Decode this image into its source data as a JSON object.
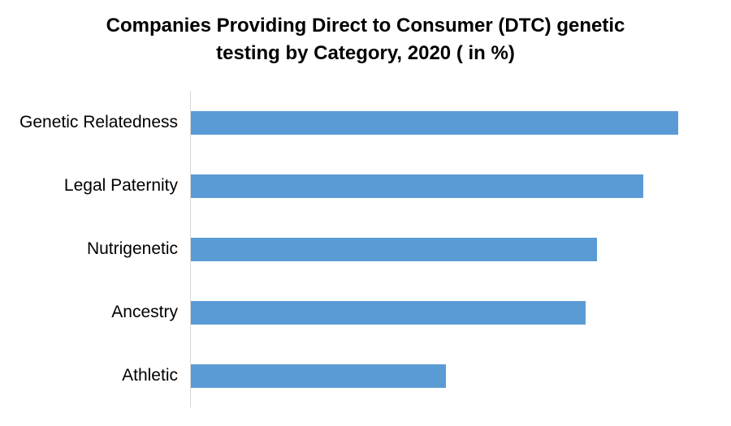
{
  "chart": {
    "title_lines": [
      "Companies Providing Direct to Consumer (DTC) genetic",
      "testing by Category, 2020 ( in %)"
    ]
  },
  "chart_data": {
    "type": "bar",
    "orientation": "horizontal",
    "title": "Companies Providing Direct to Consumer (DTC) genetic testing by Category, 2020 ( in %)",
    "categories": [
      "Genetic Relatedness",
      "Legal Paternity",
      "Nutrigenetic",
      "Ancestry",
      "Athletic"
    ],
    "values": [
      84,
      78,
      70,
      68,
      44
    ],
    "value_unit": "%",
    "xlabel": "",
    "ylabel": "",
    "xlim": [
      0,
      90
    ],
    "grid": false,
    "legend": false,
    "data_labels": false,
    "bar_color": "#5B9BD5",
    "axis_line_color": "#D6D6D6",
    "title_color": "#000000",
    "label_color": "#000000"
  }
}
